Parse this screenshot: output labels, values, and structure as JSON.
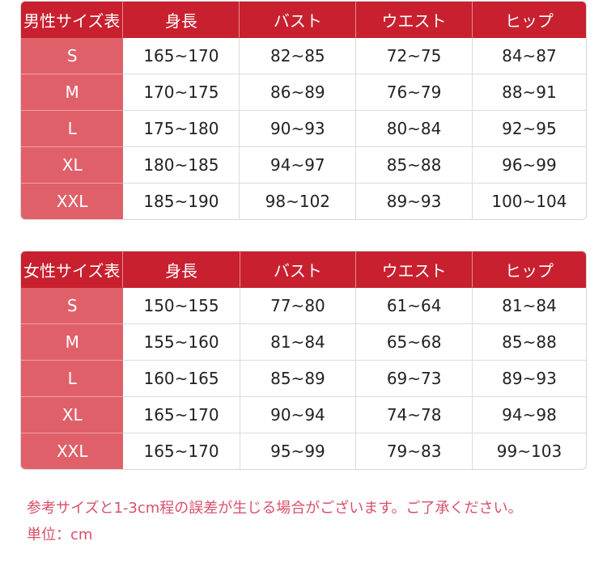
{
  "colors": {
    "header": "#c8202f",
    "size_column": "#e0606a",
    "note_text": "#d8506a"
  },
  "tables": [
    {
      "title": "男性サイズ表",
      "headers": [
        "身長",
        "バスト",
        "ウエスト",
        "ヒップ"
      ],
      "rows": [
        {
          "size": "S",
          "values": [
            "165~170",
            "82~85",
            "72~75",
            "84~87"
          ]
        },
        {
          "size": "M",
          "values": [
            "170~175",
            "86~89",
            "76~79",
            "88~91"
          ]
        },
        {
          "size": "L",
          "values": [
            "175~180",
            "90~93",
            "80~84",
            "92~95"
          ]
        },
        {
          "size": "XL",
          "values": [
            "180~185",
            "94~97",
            "85~88",
            "96~99"
          ]
        },
        {
          "size": "XXL",
          "values": [
            "185~190",
            "98~102",
            "89~93",
            "100~104"
          ]
        }
      ]
    },
    {
      "title": "女性サイズ表",
      "headers": [
        "身長",
        "バスト",
        "ウエスト",
        "ヒップ"
      ],
      "rows": [
        {
          "size": "S",
          "values": [
            "150~155",
            "77~80",
            "61~64",
            "81~84"
          ]
        },
        {
          "size": "M",
          "values": [
            "155~160",
            "81~84",
            "65~68",
            "85~88"
          ]
        },
        {
          "size": "L",
          "values": [
            "160~165",
            "85~89",
            "69~73",
            "89~93"
          ]
        },
        {
          "size": "XL",
          "values": [
            "165~170",
            "90~94",
            "74~78",
            "94~98"
          ]
        },
        {
          "size": "XXL",
          "values": [
            "165~170",
            "95~99",
            "79~83",
            "99~103"
          ]
        }
      ]
    }
  ],
  "notes": {
    "disclaimer": "参考サイズと1-3cm程の誤差が生じる場合がございます。ご了承ください。",
    "unit": "単位：cm"
  }
}
